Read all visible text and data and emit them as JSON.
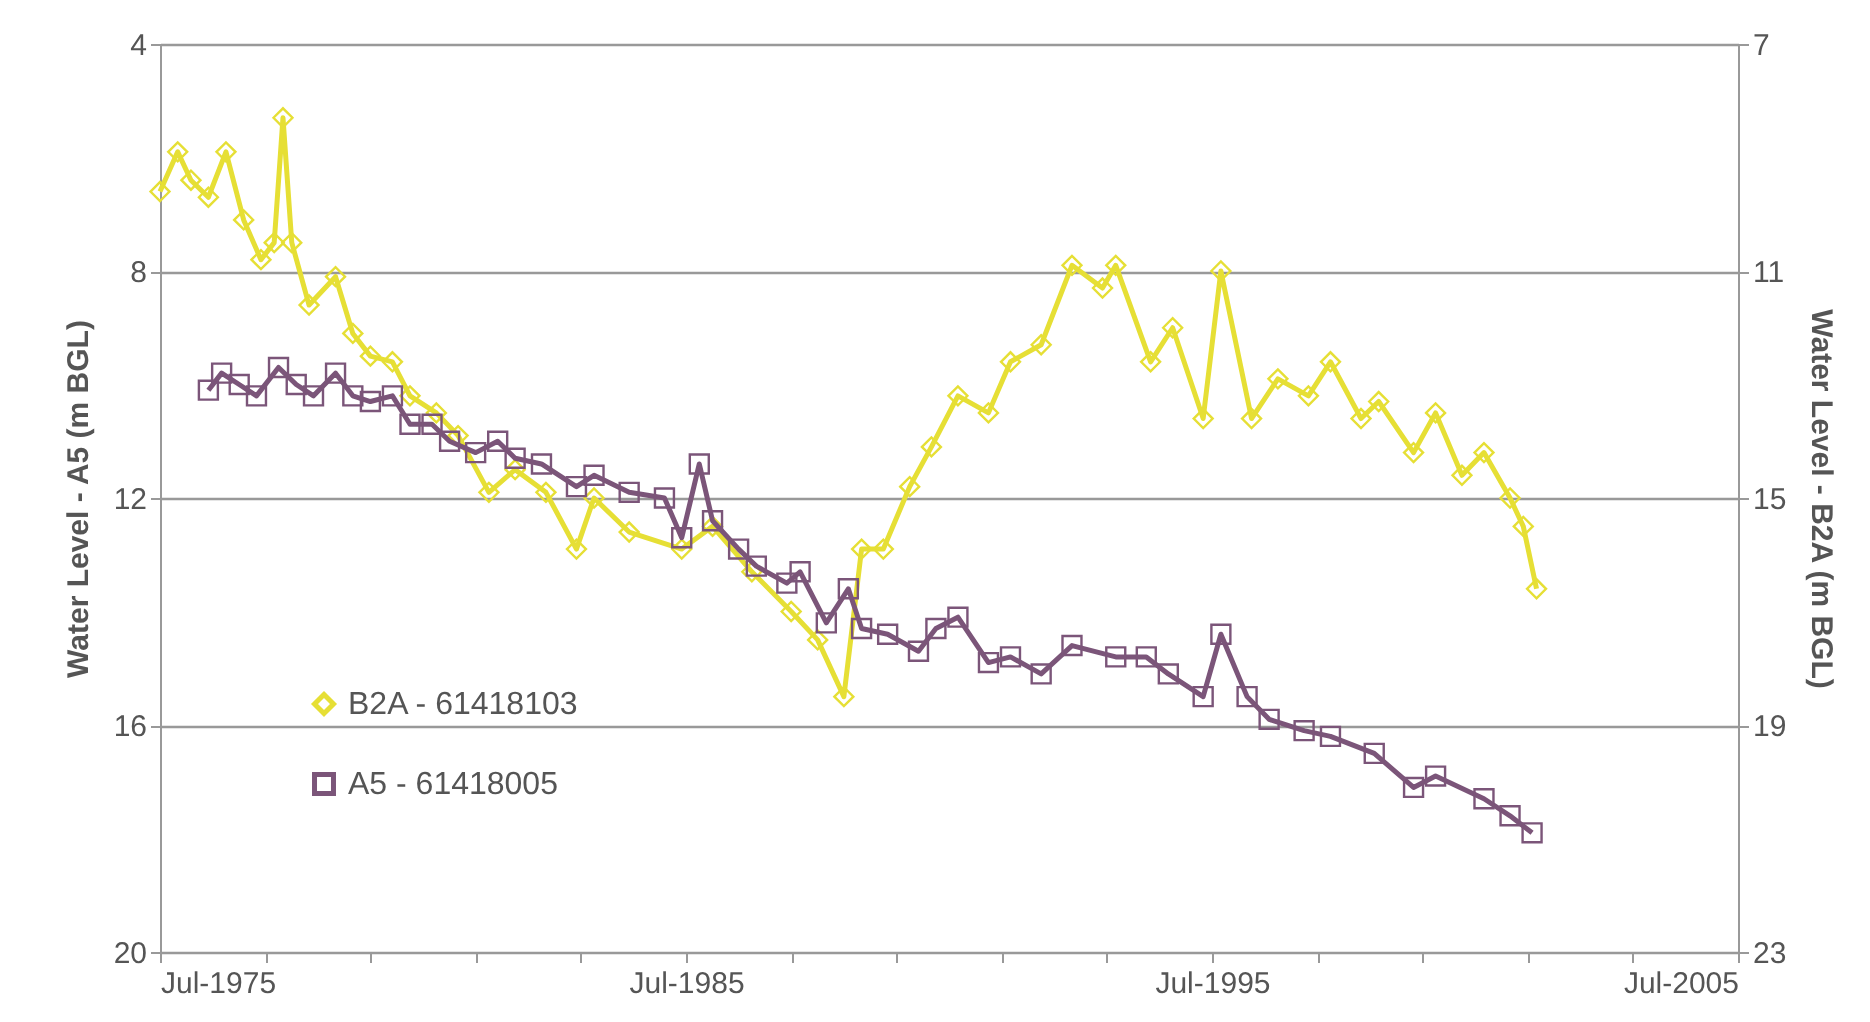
{
  "chart_data": {
    "type": "line",
    "ylabel": "Water Level - A5  (m BGL)",
    "y2label": "Water Level - B2A  (m BGL)",
    "xlim": [
      "1975-07",
      "2005-07"
    ],
    "xticks": [
      {
        "value": "1975-07",
        "label": "Jul-1975"
      },
      {
        "value": "1977-07",
        "label": null
      },
      {
        "value": "1979-07",
        "label": null
      },
      {
        "value": "1981-07",
        "label": null
      },
      {
        "value": "1983-07",
        "label": null
      },
      {
        "value": "1985-07",
        "label": "Jul-1985"
      },
      {
        "value": "1987-07",
        "label": null
      },
      {
        "value": "1989-07",
        "label": null
      },
      {
        "value": "1991-07",
        "label": null
      },
      {
        "value": "1993-07",
        "label": null
      },
      {
        "value": "1995-07",
        "label": "Jul-1995"
      },
      {
        "value": "1997-07",
        "label": null
      },
      {
        "value": "1999-07",
        "label": null
      },
      {
        "value": "2001-07",
        "label": null
      },
      {
        "value": "2003-07",
        "label": null
      },
      {
        "value": "2005-07",
        "label": "Jul-2005"
      }
    ],
    "ylim": [
      20,
      4
    ],
    "yticks": [
      4,
      8,
      12,
      16,
      20
    ],
    "y2lim": [
      23,
      7
    ],
    "y2ticks": [
      7,
      11,
      15,
      19,
      23
    ],
    "grid": "y",
    "legend": "bottom left",
    "line_style": "solid",
    "series": [
      {
        "name": "B2A - 61418103",
        "color": "#e6df35",
        "axis": "y2",
        "marker": "diamond",
        "x": [
          "1975-07",
          "1975-11",
          "1976-02",
          "1976-06",
          "1976-10",
          "1977-02",
          "1977-06",
          "1977-09",
          "1977-11",
          "1978-01",
          "1978-05",
          "1978-11",
          "1979-03",
          "1979-07",
          "1979-12",
          "1980-04",
          "1980-10",
          "1981-03",
          "1981-10",
          "1982-04",
          "1982-11",
          "1983-06",
          "1983-10",
          "1984-06",
          "1985-06",
          "1986-01",
          "1986-10",
          "1987-07",
          "1988-01",
          "1988-07",
          "1988-11",
          "1989-04",
          "1989-10",
          "1990-03",
          "1990-09",
          "1991-04",
          "1991-09",
          "1992-04",
          "1992-11",
          "1993-06",
          "1993-09",
          "1994-05",
          "1994-10",
          "1995-05",
          "1995-09",
          "1996-04",
          "1996-10",
          "1997-05",
          "1997-10",
          "1998-05",
          "1998-09",
          "1999-05",
          "1999-10",
          "2000-04",
          "2000-09",
          "2001-03",
          "2001-06",
          "2001-09"
        ],
        "values": [
          9.6,
          8.9,
          9.4,
          9.7,
          8.9,
          10.1,
          10.8,
          10.5,
          8.3,
          10.5,
          11.6,
          11.1,
          12.1,
          12.5,
          12.6,
          13.2,
          13.5,
          13.9,
          14.9,
          14.5,
          14.9,
          15.9,
          15.0,
          15.6,
          15.9,
          15.5,
          16.3,
          17.0,
          17.5,
          18.5,
          15.9,
          15.9,
          14.8,
          14.1,
          13.2,
          13.5,
          12.6,
          12.3,
          10.9,
          11.3,
          10.9,
          12.6,
          12.0,
          13.6,
          11.0,
          13.6,
          12.9,
          13.2,
          12.6,
          13.6,
          13.3,
          14.2,
          13.5,
          14.6,
          14.2,
          15.0,
          15.5,
          16.6
        ]
      },
      {
        "name": "A5 - 61418005",
        "color": "#7b5579",
        "marker": "square",
        "x": [
          "1976-06",
          "1976-09",
          "1977-01",
          "1977-05",
          "1977-10",
          "1978-02",
          "1978-06",
          "1978-11",
          "1979-03",
          "1979-07",
          "1979-12",
          "1980-04",
          "1980-09",
          "1981-01",
          "1981-07",
          "1981-12",
          "1982-04",
          "1982-10",
          "1983-06",
          "1983-10",
          "1984-06",
          "1985-02",
          "1985-06",
          "1985-10",
          "1986-01",
          "1986-07",
          "1986-11",
          "1987-06",
          "1987-09",
          "1988-03",
          "1988-08",
          "1988-11",
          "1989-05",
          "1989-12",
          "1990-04",
          "1990-09",
          "1991-04",
          "1991-09",
          "1992-04",
          "1992-11",
          "1993-09",
          "1994-04",
          "1994-09",
          "1995-05",
          "1995-09",
          "1996-03",
          "1996-08",
          "1997-04",
          "1997-10",
          "1998-08",
          "1999-05",
          "1999-10",
          "2000-09",
          "2001-03",
          "2001-08"
        ],
        "values": [
          10.1,
          9.8,
          10.0,
          10.2,
          9.7,
          10.0,
          10.2,
          9.8,
          10.2,
          10.3,
          10.2,
          10.7,
          10.7,
          11.0,
          11.2,
          11.0,
          11.3,
          11.4,
          11.8,
          11.6,
          11.9,
          12.0,
          12.7,
          11.4,
          12.4,
          12.9,
          13.2,
          13.5,
          13.3,
          14.2,
          13.6,
          14.3,
          14.4,
          14.7,
          14.3,
          14.1,
          14.9,
          14.8,
          15.1,
          14.6,
          14.8,
          14.8,
          15.1,
          15.5,
          14.4,
          15.5,
          15.9,
          16.1,
          16.2,
          16.5,
          17.1,
          16.9,
          17.3,
          17.6,
          17.9
        ]
      }
    ]
  }
}
